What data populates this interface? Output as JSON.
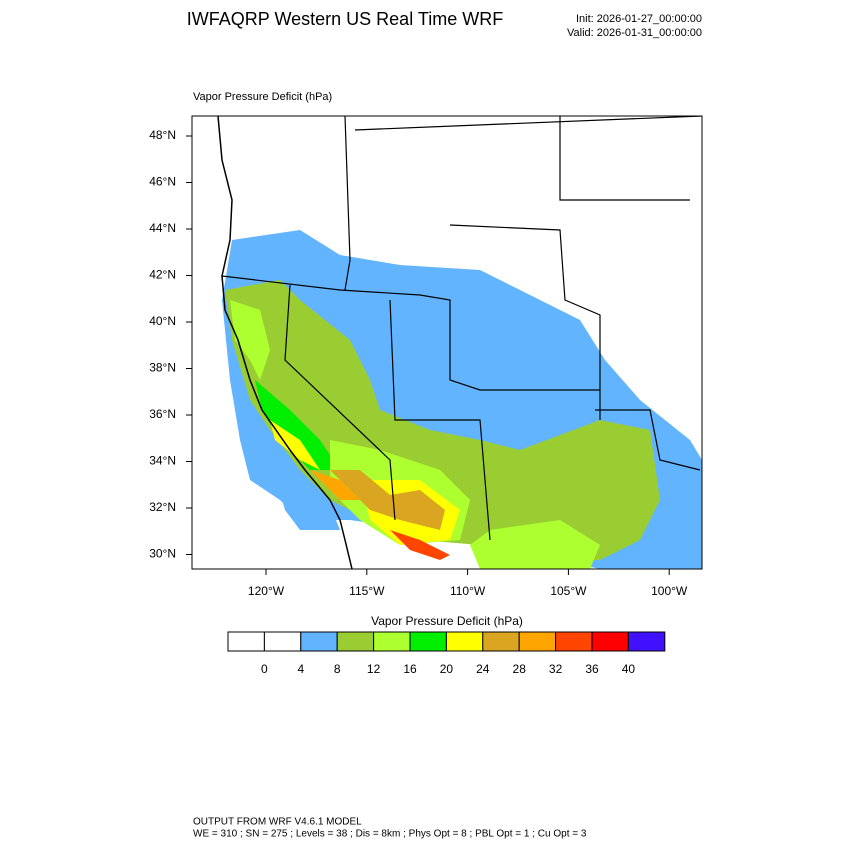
{
  "header": {
    "title": "IWFAQRP Western US Real Time WRF",
    "init": "Init: 2026-01-27_00:00:00",
    "valid": "Valid: 2026-01-31_00:00:00"
  },
  "map": {
    "field_label": "Vapor Pressure Deficit   (hPa)",
    "lat_labels": [
      "48°N",
      "46°N",
      "44°N",
      "42°N",
      "40°N",
      "38°N",
      "36°N",
      "34°N",
      "32°N",
      "30°N"
    ],
    "lon_labels": [
      "120°W",
      "115°W",
      "110°W",
      "105°W",
      "100°W"
    ]
  },
  "colorbar": {
    "title": "Vapor Pressure Deficit  (hPa)",
    "levels": [
      0,
      4,
      8,
      12,
      16,
      20,
      24,
      28,
      32,
      36,
      40
    ],
    "colors": [
      "#ffffff",
      "#ffffff",
      "#63b4ff",
      "#9acd32",
      "#adff2f",
      "#00ee00",
      "#ffff00",
      "#daa520",
      "#ffa500",
      "#ff4500",
      "#ff0000",
      "#4010ff"
    ]
  },
  "footer": {
    "line1": "OUTPUT FROM WRF V4.6.1 MODEL",
    "line2": "WE = 310 ; SN = 275 ; Levels = 38 ; Dis = 8km ; Phys Opt = 8 ; PBL Opt = 1 ; Cu Opt = 3"
  }
}
